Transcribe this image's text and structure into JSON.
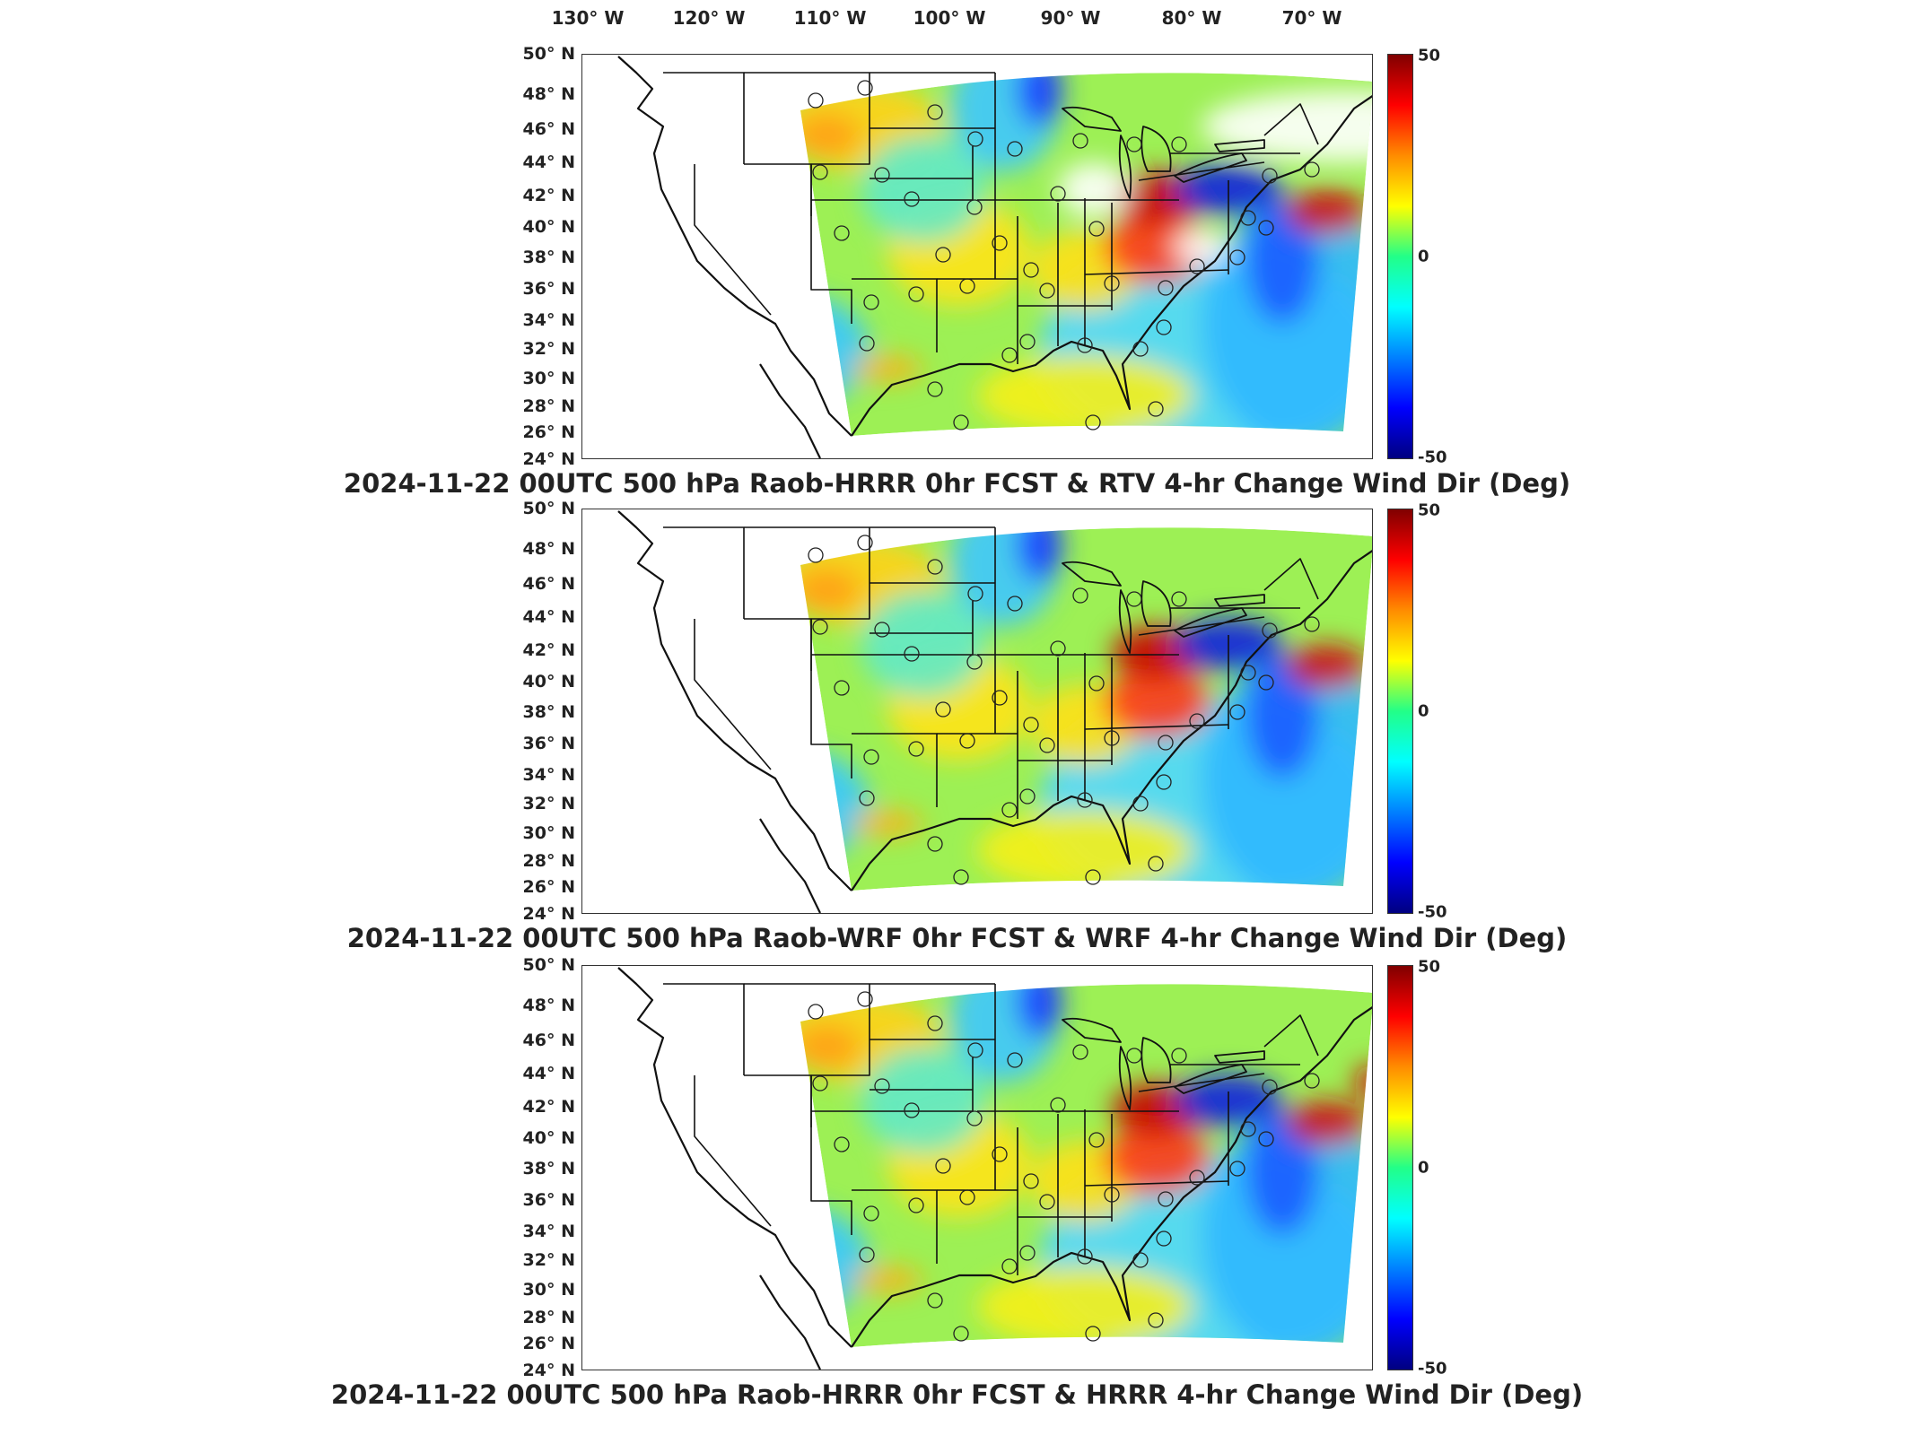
{
  "longitude_labels": [
    "130° W",
    "120° W",
    "110° W",
    "100° W",
    "90° W",
    "80° W",
    "70° W"
  ],
  "latitude_labels": [
    "50° N",
    "48° N",
    "46° N",
    "44° N",
    "42° N",
    "40° N",
    "38° N",
    "36° N",
    "34° N",
    "32° N",
    "30° N",
    "28° N",
    "26° N",
    "24° N"
  ],
  "colorbar": {
    "max_label": "50",
    "zero_label": "0",
    "min_label": "-50",
    "colors": [
      "#800000",
      "#ff0000",
      "#ff8c00",
      "#ffff00",
      "#22ff88",
      "#00ffff",
      "#0080ff",
      "#0000ff",
      "#000080"
    ]
  },
  "panels": [
    {
      "title": "2024-11-22 00UTC 500 hPa Raob-HRRR 0hr FCST & RTV 4-hr Change Wind Dir (Deg)"
    },
    {
      "title": "2024-11-22 00UTC 500 hPa Raob-WRF 0hr FCST & WRF 4-hr Change Wind Dir (Deg)"
    },
    {
      "title": "2024-11-22 00UTC 500 hPa Raob-HRRR 0hr FCST & HRRR 4-hr Change Wind Dir (Deg)"
    }
  ]
}
